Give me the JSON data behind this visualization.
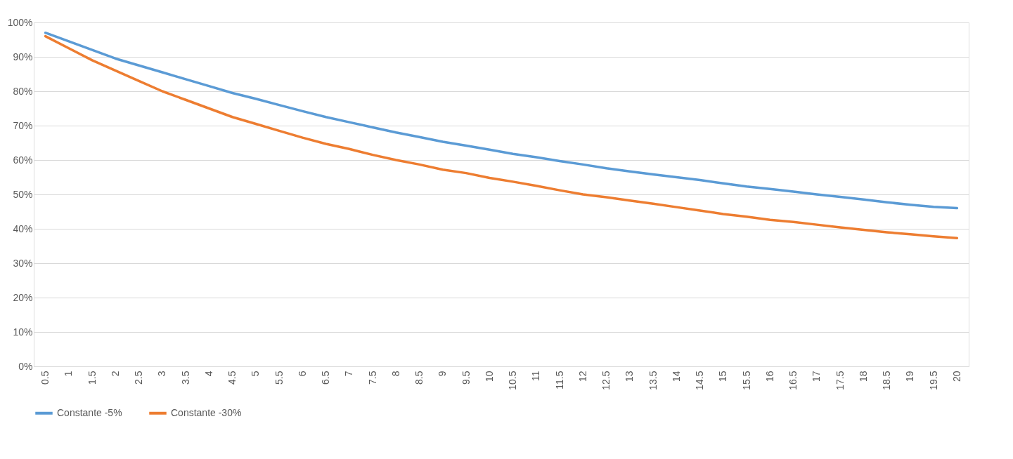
{
  "chart_data": {
    "type": "line",
    "categories": [
      "0.5",
      "1",
      "1.5",
      "2",
      "2.5",
      "3",
      "3.5",
      "4",
      "4.5",
      "5",
      "5.5",
      "6",
      "6.5",
      "7",
      "7.5",
      "8",
      "8.5",
      "9",
      "9.5",
      "10",
      "10.5",
      "11",
      "11.5",
      "12",
      "12.5",
      "13",
      "13.5",
      "14",
      "14.5",
      "15",
      "15.5",
      "16",
      "16.5",
      "17",
      "17.5",
      "18",
      "18.5",
      "19",
      "19.5",
      "20"
    ],
    "series": [
      {
        "name": "Constante -5%",
        "color": "#5b9bd5",
        "values": [
          97,
          94.5,
          92,
          89.5,
          87.5,
          85.5,
          83.5,
          81.5,
          79.5,
          77.8,
          76,
          74.2,
          72.5,
          71,
          69.5,
          68,
          66.7,
          65.3,
          64.2,
          63,
          61.8,
          60.8,
          59.7,
          58.7,
          57.6,
          56.7,
          55.8,
          55,
          54.2,
          53.2,
          52.3,
          51.6,
          50.8,
          50,
          49.3,
          48.5,
          47.7,
          47,
          46.4,
          46
        ]
      },
      {
        "name": "Constante -30%",
        "color": "#ed7d31",
        "values": [
          96,
          92.5,
          89,
          86,
          83,
          80,
          77.5,
          75,
          72.5,
          70.5,
          68.5,
          66.5,
          64.7,
          63.2,
          61.5,
          60,
          58.7,
          57.2,
          56.2,
          54.8,
          53.7,
          52.5,
          51.2,
          50,
          49.2,
          48.2,
          47.3,
          46.3,
          45.3,
          44.3,
          43.5,
          42.6,
          42,
          41.2,
          40.4,
          39.7,
          39,
          38.4,
          37.8,
          37.3
        ]
      }
    ],
    "ylim": [
      0,
      100
    ],
    "yticks": [
      {
        "value": 0,
        "label": "0%"
      },
      {
        "value": 10,
        "label": "10%"
      },
      {
        "value": 20,
        "label": "20%"
      },
      {
        "value": 30,
        "label": "30%"
      },
      {
        "value": 40,
        "label": "40%"
      },
      {
        "value": 50,
        "label": "50%"
      },
      {
        "value": 60,
        "label": "60%"
      },
      {
        "value": 70,
        "label": "70%"
      },
      {
        "value": 80,
        "label": "80%"
      },
      {
        "value": 90,
        "label": "90%"
      },
      {
        "value": 100,
        "label": "100%"
      }
    ],
    "grid": "y",
    "legend": "bottom",
    "marker": "none",
    "line_style": "solid"
  }
}
